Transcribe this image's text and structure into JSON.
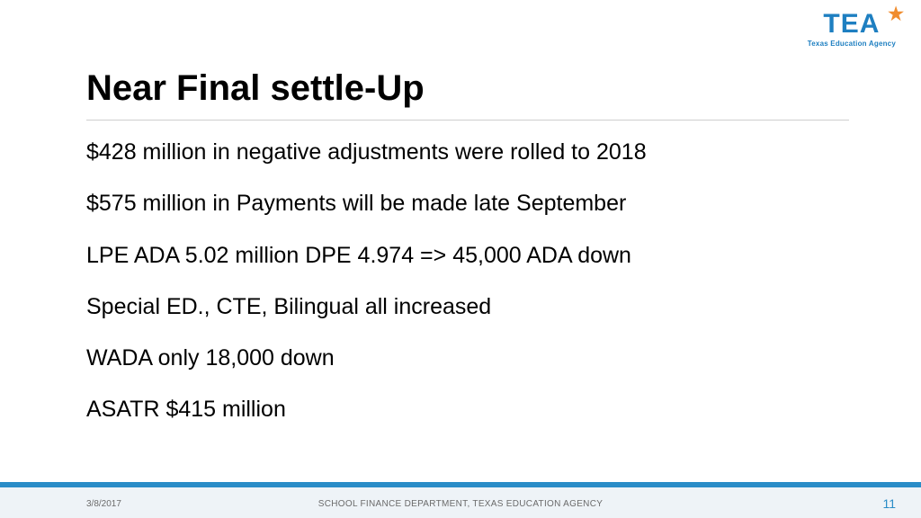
{
  "logo": {
    "main": "TEA",
    "sub": "Texas Education Agency",
    "main_color": "#1e7fc1",
    "star_color": "#f08c2e"
  },
  "title": "Near Final settle-Up",
  "bullets": [
    "$428 million in negative adjustments were rolled to 2018",
    "$575 million in Payments will be made late September",
    "LPE ADA 5.02 million DPE 4.974 => 45,000 ADA down",
    "Special ED., CTE, Bilingual all increased",
    "WADA only 18,000 down",
    "ASATR $415 million"
  ],
  "footer": {
    "date": "3/8/2017",
    "center": "SCHOOL FINANCE DEPARTMENT, TEXAS EDUCATION AGENCY",
    "page": "11",
    "accent_color": "#2a8cc7",
    "bg_color": "#eef3f7"
  },
  "styles": {
    "title_fontsize": 40,
    "bullet_fontsize": 25,
    "title_color": "#000000",
    "bullet_color": "#000000",
    "divider_color": "#cfcfcf",
    "background_color": "#ffffff"
  }
}
